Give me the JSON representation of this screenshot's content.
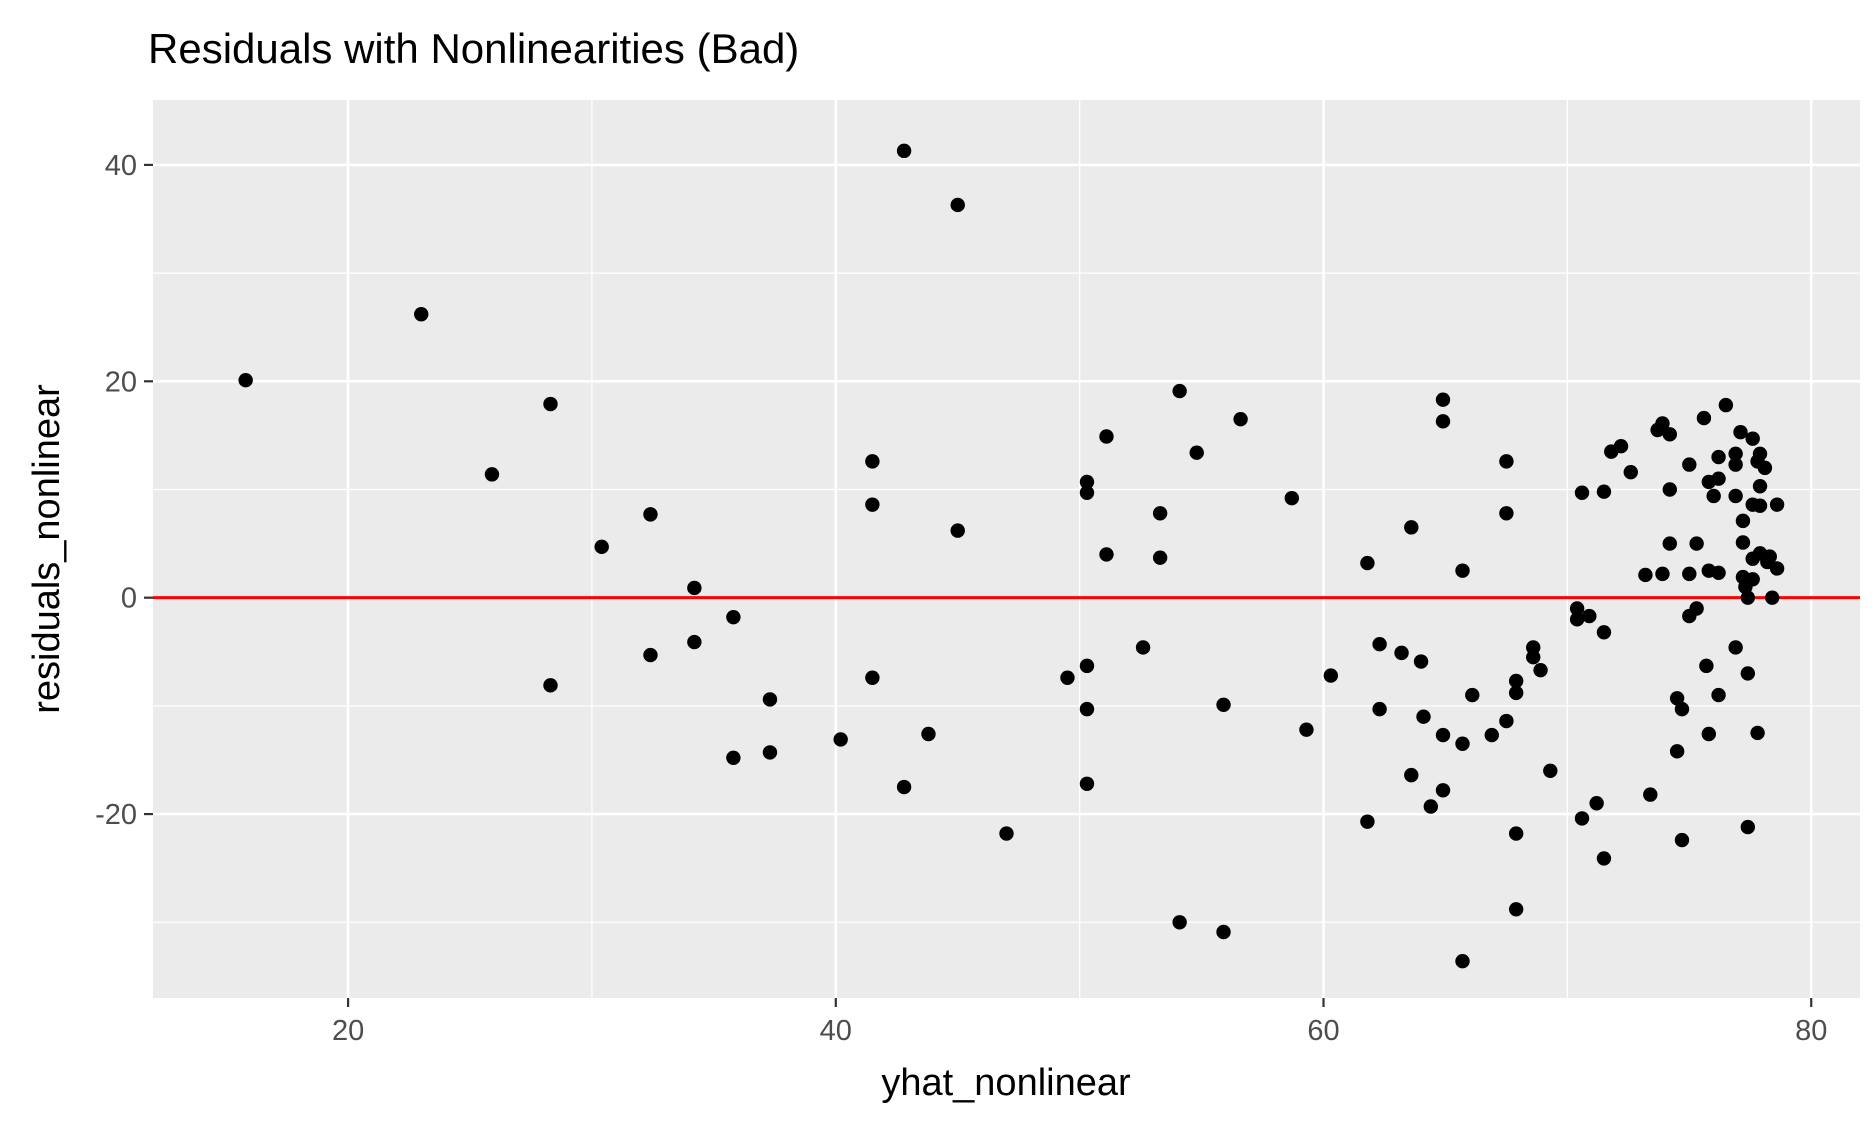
{
  "chart_data": {
    "type": "scatter",
    "title": "Residuals with Nonlinearities (Bad)",
    "xlabel": "yhat_nonlinear",
    "ylabel": "residuals_nonlinear",
    "xlim": [
      12,
      82
    ],
    "ylim": [
      -37,
      46
    ],
    "x_ticks": [
      20,
      40,
      60,
      80
    ],
    "x_tick_labels": [
      "20",
      "40",
      "60",
      "80"
    ],
    "y_ticks": [
      -20,
      0,
      20,
      40
    ],
    "y_tick_labels": [
      "-20",
      "0",
      "20",
      "40"
    ],
    "grid": true,
    "legend": "none",
    "reference_line": {
      "y": 0,
      "color": "#ff0000"
    },
    "colors": {
      "panel": "#ebebeb",
      "grid": "#ffffff",
      "point": "#000000",
      "reference": "#ff0000"
    },
    "points": [
      [
        15.8,
        20.1
      ],
      [
        23.0,
        26.2
      ],
      [
        25.9,
        11.4
      ],
      [
        28.3,
        17.9
      ],
      [
        28.3,
        -8.1
      ],
      [
        30.4,
        4.7
      ],
      [
        32.4,
        7.7
      ],
      [
        32.4,
        -5.3
      ],
      [
        34.2,
        0.9
      ],
      [
        34.2,
        -4.1
      ],
      [
        35.8,
        -1.8
      ],
      [
        35.8,
        -14.8
      ],
      [
        37.3,
        -9.4
      ],
      [
        37.3,
        -14.3
      ],
      [
        40.2,
        -13.1
      ],
      [
        41.5,
        12.6
      ],
      [
        41.5,
        8.6
      ],
      [
        41.5,
        -7.4
      ],
      [
        42.8,
        41.3
      ],
      [
        42.8,
        -17.5
      ],
      [
        43.8,
        -12.6
      ],
      [
        45.0,
        36.3
      ],
      [
        45.0,
        6.2
      ],
      [
        47.0,
        -21.8
      ],
      [
        49.5,
        -7.4
      ],
      [
        50.3,
        10.7
      ],
      [
        50.3,
        9.7
      ],
      [
        50.3,
        -6.3
      ],
      [
        50.3,
        -10.3
      ],
      [
        50.3,
        -17.2
      ],
      [
        51.1,
        14.9
      ],
      [
        51.1,
        4.0
      ],
      [
        52.6,
        -4.6
      ],
      [
        53.3,
        7.8
      ],
      [
        53.3,
        3.7
      ],
      [
        54.1,
        19.1
      ],
      [
        54.1,
        -30.0
      ],
      [
        54.8,
        13.4
      ],
      [
        55.9,
        -9.9
      ],
      [
        55.9,
        -30.9
      ],
      [
        56.6,
        16.5
      ],
      [
        58.7,
        9.2
      ],
      [
        59.3,
        -12.2
      ],
      [
        60.3,
        -7.2
      ],
      [
        61.8,
        3.2
      ],
      [
        61.8,
        -20.7
      ],
      [
        62.3,
        -4.3
      ],
      [
        62.3,
        -10.3
      ],
      [
        63.2,
        -5.1
      ],
      [
        63.6,
        6.5
      ],
      [
        63.6,
        -16.4
      ],
      [
        64.0,
        -5.9
      ],
      [
        64.1,
        -11.0
      ],
      [
        64.4,
        -19.3
      ],
      [
        64.9,
        18.3
      ],
      [
        64.9,
        16.3
      ],
      [
        64.9,
        -12.7
      ],
      [
        64.9,
        -17.8
      ],
      [
        65.7,
        2.5
      ],
      [
        65.7,
        -13.5
      ],
      [
        65.7,
        -33.6
      ],
      [
        66.1,
        -9.0
      ],
      [
        66.9,
        -12.7
      ],
      [
        67.5,
        12.6
      ],
      [
        67.5,
        7.8
      ],
      [
        67.5,
        -11.4
      ],
      [
        67.9,
        -7.7
      ],
      [
        67.9,
        -8.8
      ],
      [
        67.9,
        -21.8
      ],
      [
        67.9,
        -28.8
      ],
      [
        68.6,
        -4.6
      ],
      [
        68.6,
        -5.5
      ],
      [
        68.9,
        -6.7
      ],
      [
        69.3,
        -16.0
      ],
      [
        70.4,
        -1.0
      ],
      [
        70.4,
        -2.0
      ],
      [
        70.6,
        9.7
      ],
      [
        70.6,
        -20.4
      ],
      [
        70.9,
        -1.7
      ],
      [
        71.2,
        -19.0
      ],
      [
        71.5,
        9.8
      ],
      [
        71.5,
        -3.2
      ],
      [
        71.5,
        -24.1
      ],
      [
        71.8,
        13.5
      ],
      [
        72.2,
        14.0
      ],
      [
        72.6,
        11.6
      ],
      [
        73.2,
        2.1
      ],
      [
        73.4,
        -18.2
      ],
      [
        73.7,
        15.5
      ],
      [
        73.9,
        16.1
      ],
      [
        73.9,
        2.2
      ],
      [
        74.2,
        15.1
      ],
      [
        74.2,
        10.0
      ],
      [
        74.2,
        5.0
      ],
      [
        74.5,
        -9.3
      ],
      [
        74.5,
        -14.2
      ],
      [
        74.7,
        -10.3
      ],
      [
        74.7,
        -22.4
      ],
      [
        75.0,
        12.3
      ],
      [
        75.0,
        2.2
      ],
      [
        75.0,
        -1.7
      ],
      [
        75.3,
        5.0
      ],
      [
        75.3,
        -1.0
      ],
      [
        75.6,
        16.6
      ],
      [
        75.7,
        -6.3
      ],
      [
        75.8,
        10.7
      ],
      [
        75.8,
        2.5
      ],
      [
        75.8,
        -12.6
      ],
      [
        76.0,
        9.4
      ],
      [
        76.2,
        13.0
      ],
      [
        76.2,
        11.0
      ],
      [
        76.2,
        2.3
      ],
      [
        76.2,
        -9.0
      ],
      [
        76.5,
        17.8
      ],
      [
        76.9,
        13.3
      ],
      [
        76.9,
        12.3
      ],
      [
        76.9,
        9.4
      ],
      [
        76.9,
        -4.6
      ],
      [
        77.1,
        15.3
      ],
      [
        77.2,
        7.1
      ],
      [
        77.2,
        5.1
      ],
      [
        77.2,
        1.9
      ],
      [
        77.3,
        1.0
      ],
      [
        77.4,
        0.0
      ],
      [
        77.4,
        -7.0
      ],
      [
        77.4,
        -21.2
      ],
      [
        77.6,
        14.7
      ],
      [
        77.6,
        8.6
      ],
      [
        77.6,
        3.6
      ],
      [
        77.6,
        1.7
      ],
      [
        77.8,
        12.6
      ],
      [
        77.8,
        -12.5
      ],
      [
        77.9,
        13.3
      ],
      [
        77.9,
        10.3
      ],
      [
        77.9,
        8.5
      ],
      [
        77.9,
        4.1
      ],
      [
        78.1,
        12.0
      ],
      [
        78.2,
        3.3
      ],
      [
        78.3,
        3.8
      ],
      [
        78.4,
        0.0
      ],
      [
        78.6,
        8.6
      ],
      [
        78.6,
        2.7
      ]
    ]
  }
}
